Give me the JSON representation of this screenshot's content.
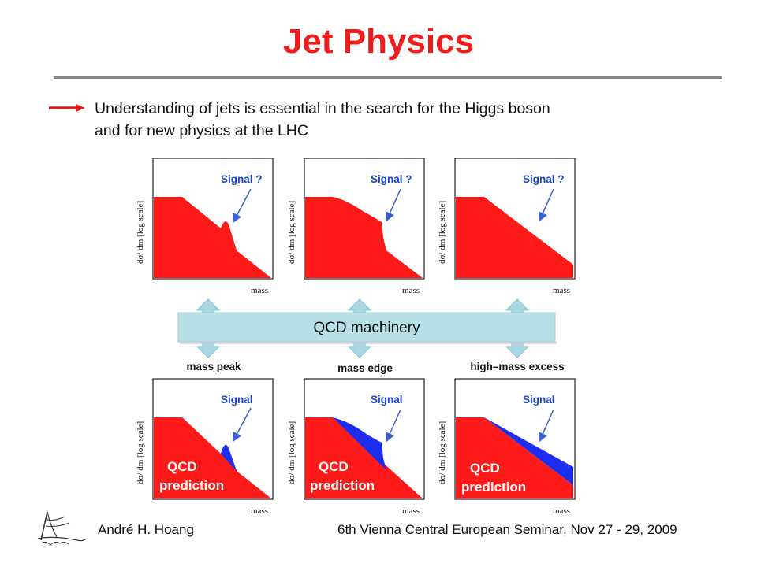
{
  "slide": {
    "title": "Jet Physics",
    "bullet_line1": "Understanding of jets is essential in the search for the Higgs boson",
    "bullet_line2": "and for new physics at the LHC"
  },
  "diagram": {
    "y_axis_label": "dσ/ dm [log scale]",
    "x_axis_label": "mass",
    "signal_q": "Signal  ?",
    "signal": "Signal",
    "machinery": "QCD machinery",
    "qcd_word": "QCD",
    "prediction_word": "prediction",
    "bottom_labels": [
      "mass peak",
      "mass edge",
      "high–mass excess"
    ]
  },
  "colors": {
    "title_red": "#ee1c1c",
    "qcd_red": "#ff1a1a",
    "signal_blue": "#1e2ef0",
    "machinery_bar": "#b7dfe6",
    "arrow_fill": "#a8d8e3"
  },
  "footer": {
    "author": "André H. Hoang",
    "event": "6th Vienna Central European Seminar, Nov 27 - 29, 2009"
  }
}
